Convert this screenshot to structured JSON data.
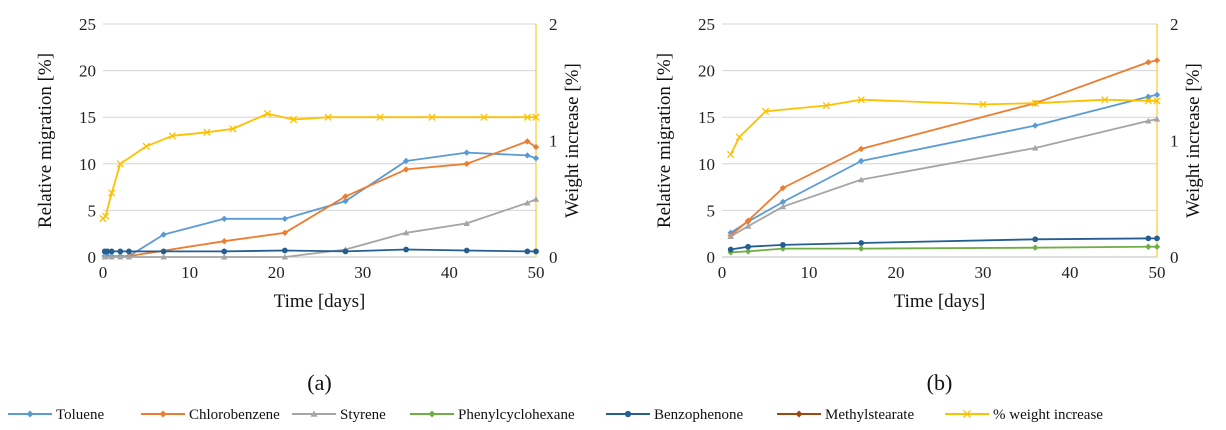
{
  "chart_data": [
    {
      "type": "line",
      "panel_label": "(a)",
      "xlabel": "Time [days]",
      "ylabel": "Relative  migration [%]",
      "y2label": "Weight increase [%]",
      "xlim": [
        0,
        50
      ],
      "xticks": [
        0,
        10,
        20,
        30,
        40,
        50
      ],
      "ylim": [
        0,
        25
      ],
      "yticks": [
        0,
        5,
        10,
        15,
        20,
        25
      ],
      "y2lim": [
        0,
        2
      ],
      "y2ticks": [
        0,
        1,
        2
      ],
      "grid": true,
      "series": [
        {
          "name": "Toluene",
          "color": "#5B9BD5",
          "marker": "diamond",
          "axis": "left",
          "x": [
            0.2,
            0.5,
            1,
            2,
            3,
            7,
            14,
            21,
            28,
            35,
            42,
            49,
            50
          ],
          "y": [
            0.1,
            0.1,
            0.1,
            0.1,
            0.1,
            2.4,
            4.1,
            4.1,
            6.0,
            10.3,
            11.2,
            10.9,
            10.6
          ]
        },
        {
          "name": "Chlorobenzene",
          "color": "#ED7D31",
          "marker": "diamond",
          "axis": "left",
          "x": [
            3,
            14,
            21,
            28,
            35,
            42,
            49,
            50
          ],
          "y": [
            0.1,
            1.7,
            2.6,
            6.5,
            9.4,
            10.0,
            12.4,
            11.8
          ]
        },
        {
          "name": "Styrene",
          "color": "#A5A5A5",
          "marker": "triangle",
          "axis": "left",
          "x": [
            0.2,
            1,
            2,
            3,
            7,
            14,
            21,
            28,
            35,
            42,
            49,
            50
          ],
          "y": [
            0,
            0,
            0,
            0,
            0,
            0,
            0,
            0.8,
            2.6,
            3.6,
            5.8,
            6.2
          ]
        },
        {
          "name": "Phenylcyclohexane",
          "color": "#70AD47",
          "marker": "diamond",
          "axis": "left",
          "x": [],
          "y": []
        },
        {
          "name": "Benzophenone",
          "color": "#255E91",
          "marker": "circle",
          "axis": "left",
          "x": [
            0.2,
            0.5,
            1,
            2,
            3,
            7,
            14,
            21,
            28,
            35,
            42,
            49,
            50
          ],
          "y": [
            0.6,
            0.6,
            0.6,
            0.6,
            0.6,
            0.6,
            0.6,
            0.7,
            0.6,
            0.8,
            0.7,
            0.6,
            0.6
          ]
        },
        {
          "name": "Methylstearate",
          "color": "#9E480E",
          "marker": "diamond",
          "axis": "left",
          "x": [],
          "y": []
        },
        {
          "name": "% weight increase",
          "color": "#FFC000",
          "marker": "x",
          "axis": "right",
          "x": [
            0,
            0.3,
            1,
            2,
            5,
            8,
            12,
            15,
            19,
            22,
            26,
            32,
            38,
            44,
            49,
            50
          ],
          "y": [
            0.33,
            0.35,
            0.55,
            0.8,
            0.95,
            1.04,
            1.07,
            1.1,
            1.23,
            1.18,
            1.2,
            1.2,
            1.2,
            1.2,
            1.2,
            1.2
          ]
        }
      ]
    },
    {
      "type": "line",
      "panel_label": "(b)",
      "xlabel": "Time [days]",
      "ylabel": "Relative  migration [%]",
      "y2label": "Weight increase [%]",
      "xlim": [
        0,
        50
      ],
      "xticks": [
        0,
        10,
        20,
        30,
        40,
        50
      ],
      "ylim": [
        0,
        25
      ],
      "yticks": [
        0,
        5,
        10,
        15,
        20,
        25
      ],
      "y2lim": [
        0,
        2
      ],
      "y2ticks": [
        0,
        1,
        2
      ],
      "grid": true,
      "series": [
        {
          "name": "Toluene",
          "color": "#5B9BD5",
          "marker": "diamond",
          "axis": "left",
          "x": [
            1,
            3,
            7,
            16,
            36,
            49,
            50
          ],
          "y": [
            2.6,
            3.8,
            5.9,
            10.3,
            14.1,
            17.2,
            17.4
          ]
        },
        {
          "name": "Chlorobenzene",
          "color": "#ED7D31",
          "marker": "diamond",
          "axis": "left",
          "x": [
            1,
            3,
            7,
            16,
            36,
            49,
            50
          ],
          "y": [
            2.3,
            3.9,
            7.4,
            11.6,
            16.5,
            20.9,
            21.1
          ]
        },
        {
          "name": "Styrene",
          "color": "#A5A5A5",
          "marker": "triangle",
          "axis": "left",
          "x": [
            1,
            3,
            7,
            16,
            36,
            49,
            50
          ],
          "y": [
            2.2,
            3.3,
            5.4,
            8.3,
            11.7,
            14.6,
            14.8
          ]
        },
        {
          "name": "Phenylcyclohexane",
          "color": "#70AD47",
          "marker": "diamond",
          "axis": "left",
          "x": [
            1,
            3,
            7,
            16,
            36,
            49,
            50
          ],
          "y": [
            0.5,
            0.6,
            0.9,
            0.9,
            1.0,
            1.1,
            1.1
          ]
        },
        {
          "name": "Benzophenone",
          "color": "#255E91",
          "marker": "circle",
          "axis": "left",
          "x": [
            1,
            3,
            7,
            16,
            36,
            49,
            50
          ],
          "y": [
            0.8,
            1.1,
            1.3,
            1.5,
            1.9,
            2.0,
            2.0
          ]
        },
        {
          "name": "Methylstearate",
          "color": "#9E480E",
          "marker": "diamond",
          "axis": "left",
          "x": [],
          "y": []
        },
        {
          "name": "% weight increase",
          "color": "#FFC000",
          "marker": "x",
          "axis": "right",
          "x": [
            1,
            2,
            5,
            12,
            16,
            30,
            36,
            44,
            49,
            50
          ],
          "y": [
            0.88,
            1.03,
            1.25,
            1.3,
            1.35,
            1.31,
            1.32,
            1.35,
            1.34,
            1.34
          ]
        }
      ]
    }
  ],
  "legend": {
    "placement": "bottom",
    "entries": [
      {
        "label": "Toluene",
        "color": "#5B9BD5",
        "marker": "diamond"
      },
      {
        "label": "Chlorobenzene",
        "color": "#ED7D31",
        "marker": "diamond"
      },
      {
        "label": "Styrene",
        "color": "#A5A5A5",
        "marker": "triangle"
      },
      {
        "label": "Phenylcyclohexane",
        "color": "#70AD47",
        "marker": "diamond"
      },
      {
        "label": "Benzophenone",
        "color": "#255E91",
        "marker": "circle"
      },
      {
        "label": "Methylstearate",
        "color": "#9E480E",
        "marker": "diamond"
      },
      {
        "label": "% weight increase",
        "color": "#FFC000",
        "marker": "x"
      }
    ]
  }
}
